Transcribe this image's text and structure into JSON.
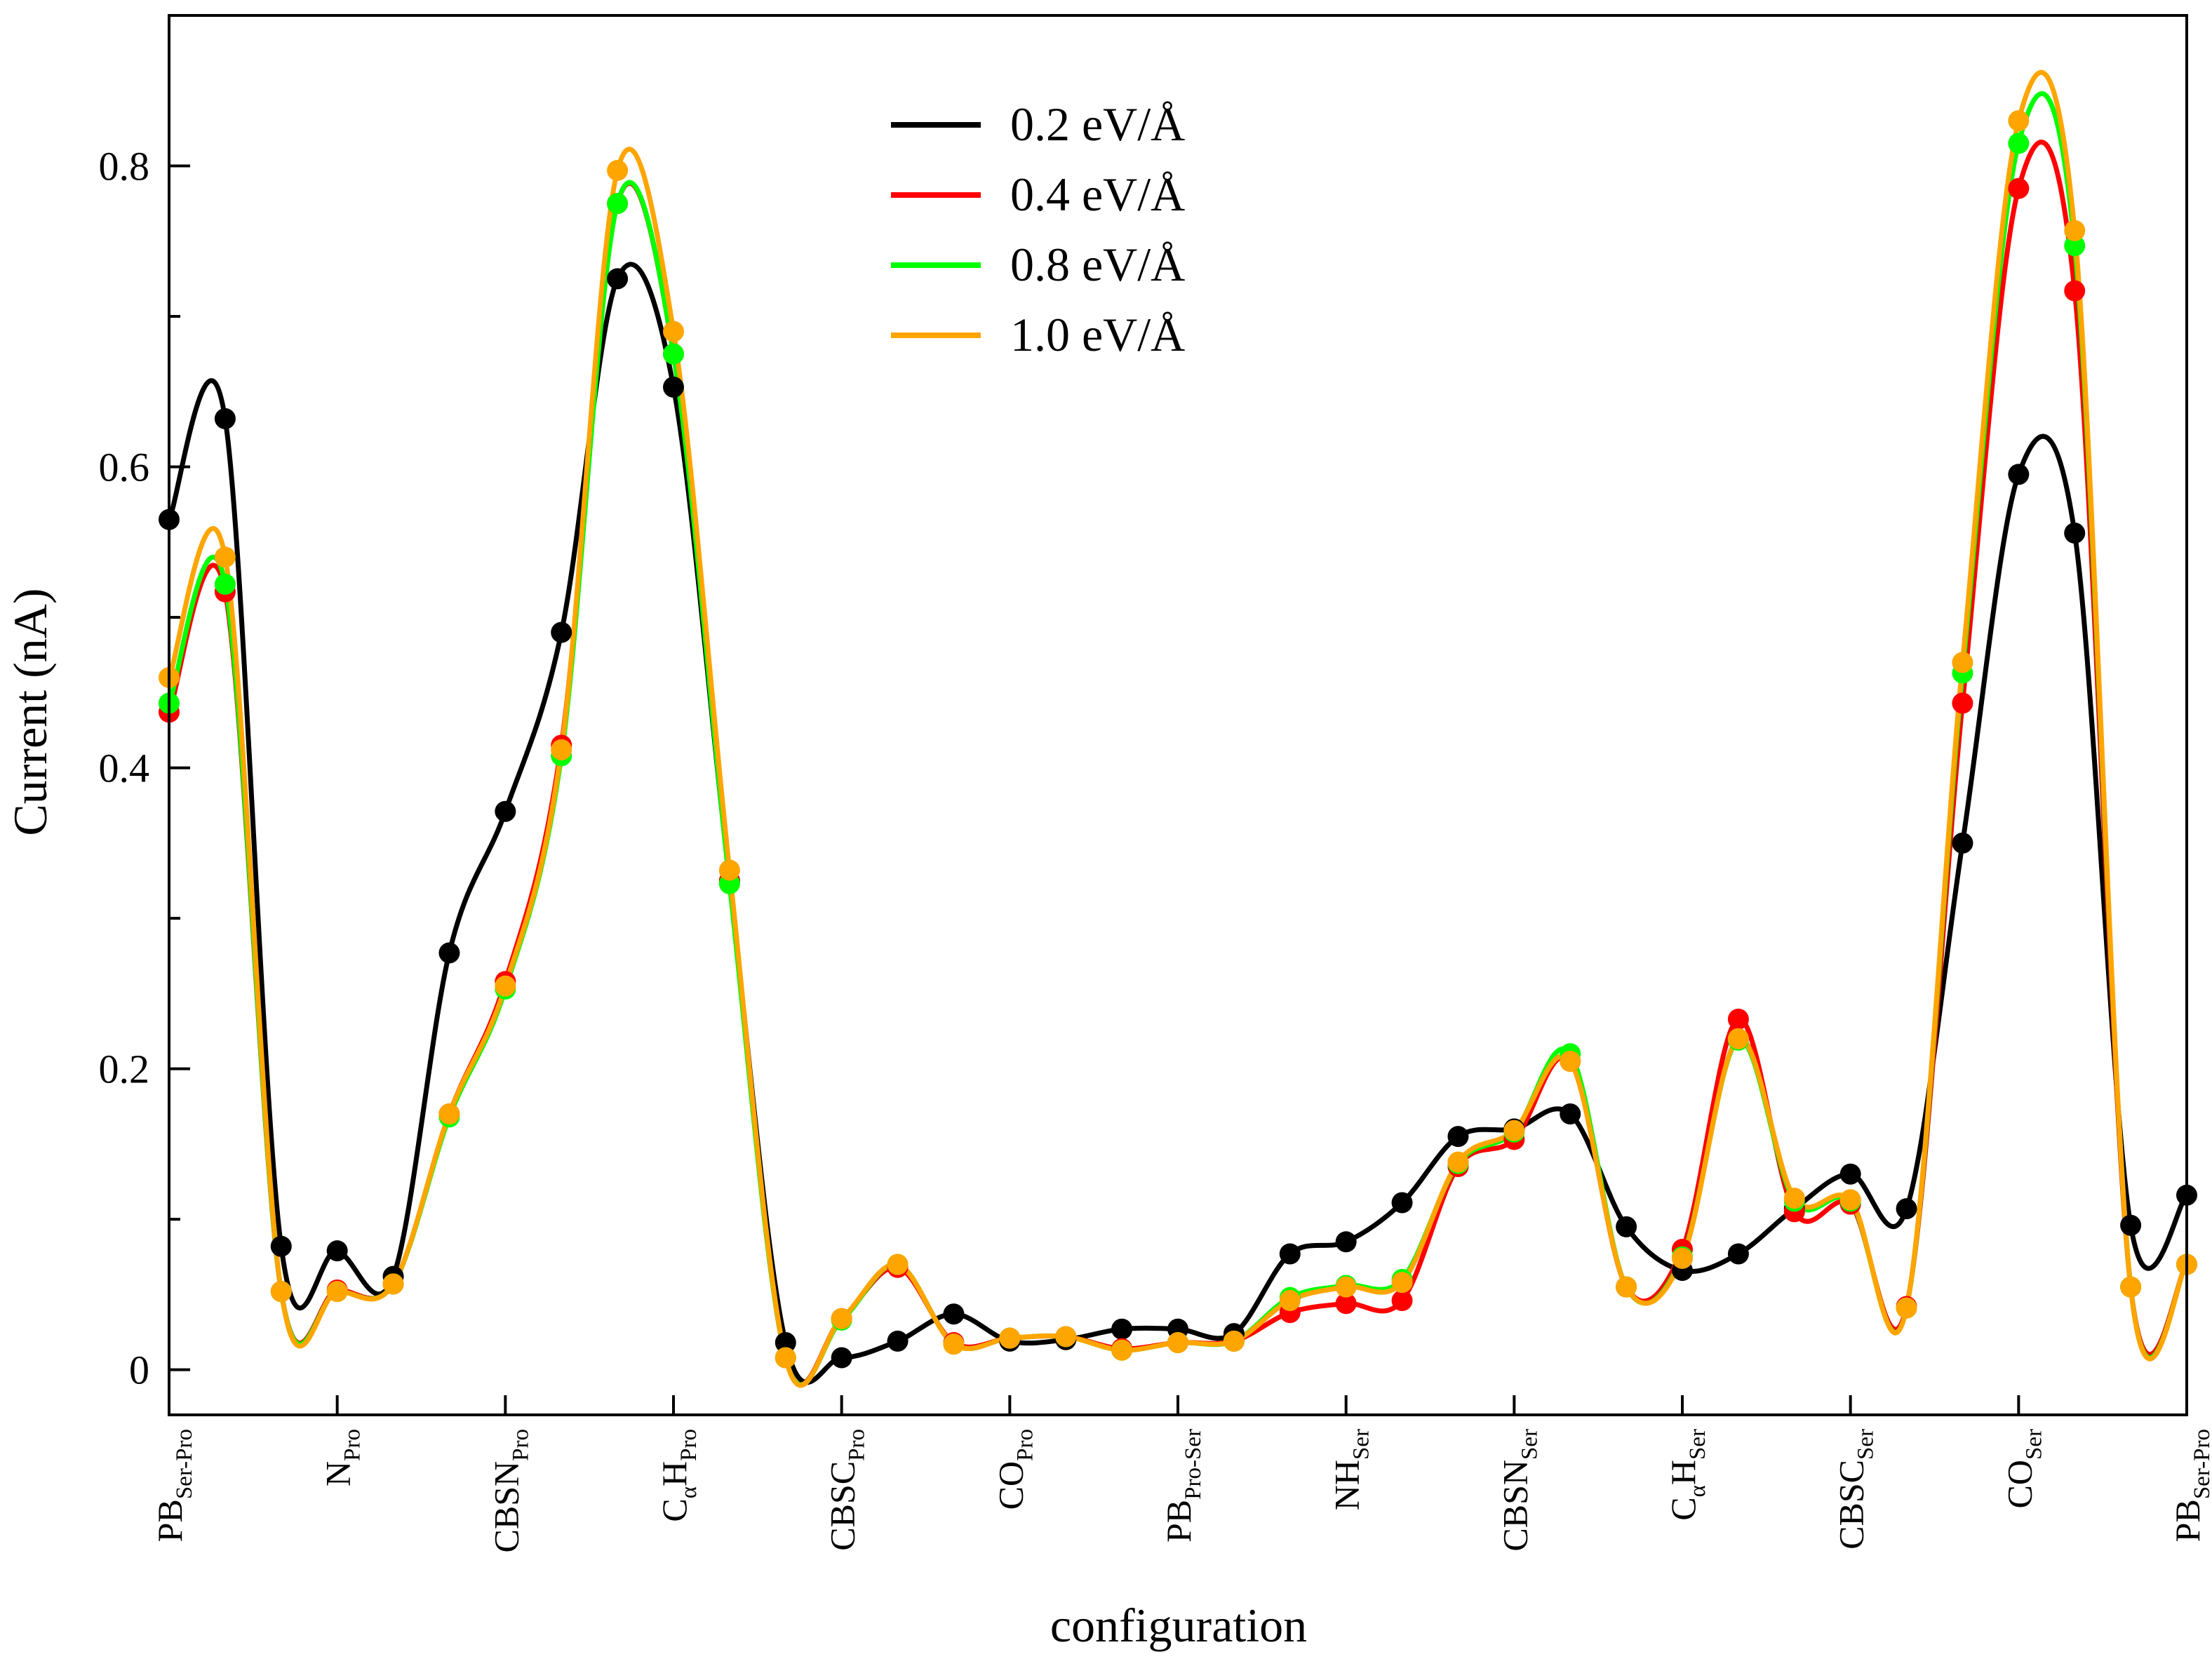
{
  "chart_data": {
    "type": "line",
    "title": "",
    "xlabel": "configuration",
    "ylabel": "Current (nA)",
    "ylim": [
      -0.03,
      0.9
    ],
    "xlim": [
      0,
      36
    ],
    "yticks": [
      0,
      0.2,
      0.4,
      0.6,
      0.8
    ],
    "ytick_labels": [
      "0",
      "0.2",
      "0.4",
      "0.6",
      "0.8"
    ],
    "grid": false,
    "legend_position": "top-center",
    "categories": [
      {
        "main": "PB",
        "sub": "Ser-Pro",
        "pos": 0
      },
      {
        "main": "N",
        "sub": "Pro",
        "pos": 3
      },
      {
        "main": "CBSN",
        "sub": "Pro",
        "pos": 6
      },
      {
        "main": "C",
        "sub2": "α",
        "main2": "H",
        "sub": "Pro",
        "pos": 9
      },
      {
        "main": "CBSC",
        "sub": "Pro",
        "pos": 12
      },
      {
        "main": "CO",
        "sub": "Pro",
        "pos": 15
      },
      {
        "main": "PB",
        "sub": "Pro-Ser",
        "pos": 18
      },
      {
        "main": "NH",
        "sub": "Ser",
        "pos": 21
      },
      {
        "main": "CBSN",
        "sub": "Ser",
        "pos": 24
      },
      {
        "main": "C",
        "sub2": "α",
        "main2": "H",
        "sub": "Ser",
        "pos": 27
      },
      {
        "main": "CBSC",
        "sub": "Ser",
        "pos": 30
      },
      {
        "main": "CO",
        "sub": "Ser",
        "pos": 33
      },
      {
        "main": "PB",
        "sub": "Ser-Pro",
        "pos": 36
      }
    ],
    "x": [
      0,
      1,
      2,
      3,
      4,
      5,
      6,
      7,
      8,
      9,
      10,
      11,
      12,
      13,
      14,
      15,
      16,
      17,
      18,
      19,
      20,
      21,
      22,
      23,
      24,
      25,
      26,
      27,
      28,
      29,
      30,
      31,
      32,
      33,
      34,
      35,
      36
    ],
    "series": [
      {
        "name": "0.2 eV/Å",
        "color": "#000000",
        "values": [
          0.565,
          0.632,
          0.082,
          0.079,
          0.062,
          0.277,
          0.371,
          0.49,
          0.725,
          0.653,
          0.325,
          0.018,
          0.008,
          0.019,
          0.037,
          0.019,
          0.02,
          0.027,
          0.027,
          0.024,
          0.077,
          0.085,
          0.111,
          0.155,
          0.16,
          0.17,
          0.095,
          0.066,
          0.077,
          0.107,
          0.13,
          0.107,
          0.35,
          0.595,
          0.556,
          0.096,
          0.116
        ]
      },
      {
        "name": "0.4 eV/Å",
        "color": "#ff0000",
        "values": [
          0.437,
          0.517,
          0.052,
          0.053,
          0.057,
          0.17,
          0.258,
          0.415,
          0.775,
          0.675,
          0.325,
          0.008,
          0.034,
          0.068,
          0.018,
          0.021,
          0.022,
          0.014,
          0.018,
          0.019,
          0.038,
          0.044,
          0.046,
          0.135,
          0.153,
          0.205,
          0.055,
          0.08,
          0.233,
          0.105,
          0.11,
          0.042,
          0.443,
          0.785,
          0.717,
          0.055,
          0.07
        ]
      },
      {
        "name": "0.8 eV/Å",
        "color": "#00ff00",
        "values": [
          0.443,
          0.522,
          0.052,
          0.052,
          0.057,
          0.168,
          0.253,
          0.408,
          0.775,
          0.675,
          0.323,
          0.008,
          0.033,
          0.07,
          0.017,
          0.021,
          0.022,
          0.013,
          0.018,
          0.019,
          0.048,
          0.056,
          0.06,
          0.137,
          0.158,
          0.21,
          0.055,
          0.075,
          0.219,
          0.112,
          0.112,
          0.041,
          0.463,
          0.815,
          0.747,
          0.055,
          0.07
        ]
      },
      {
        "name": "1.0 eV/Å",
        "color": "#ffa500",
        "values": [
          0.46,
          0.54,
          0.052,
          0.052,
          0.057,
          0.17,
          0.255,
          0.412,
          0.797,
          0.69,
          0.332,
          0.008,
          0.034,
          0.07,
          0.017,
          0.021,
          0.022,
          0.013,
          0.018,
          0.019,
          0.046,
          0.055,
          0.058,
          0.138,
          0.159,
          0.205,
          0.055,
          0.074,
          0.22,
          0.114,
          0.113,
          0.041,
          0.47,
          0.83,
          0.757,
          0.055,
          0.07
        ]
      }
    ]
  }
}
